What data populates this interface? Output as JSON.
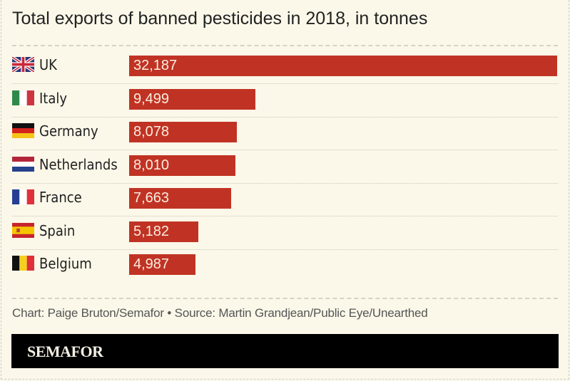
{
  "chart_data": {
    "type": "bar",
    "orientation": "horizontal",
    "title": "Total exports of banned pesticides in 2018, in tonnes",
    "categories": [
      "UK",
      "Italy",
      "Germany",
      "Netherlands",
      "France",
      "Spain",
      "Belgium"
    ],
    "values": [
      32187,
      9499,
      8078,
      8010,
      7663,
      5182,
      4987
    ],
    "value_labels": [
      "32,187",
      "9,499",
      "8,078",
      "8,010",
      "7,663",
      "5,182",
      "4,987"
    ],
    "flags": [
      "uk-flag",
      "italy-flag",
      "germany-flag",
      "netherlands-flag",
      "france-flag",
      "spain-flag",
      "belgium-flag"
    ],
    "bar_color": "#c03324",
    "xlim": [
      0,
      32187
    ],
    "grid": false
  },
  "footer": {
    "credit": "Chart: Paige Bruton/Semafor • Source: Martin Grandjean/Public Eye/Unearthed",
    "brand": "SEMAFOR"
  }
}
